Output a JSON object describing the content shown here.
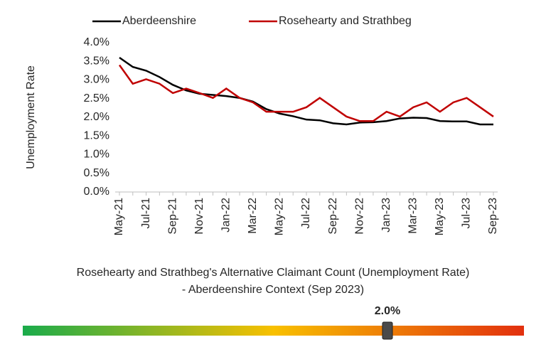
{
  "chart_data": {
    "type": "line",
    "y_label": "Unemployment Rate",
    "categories": [
      "May-21",
      null,
      "Jul-21",
      null,
      "Sep-21",
      null,
      "Nov-21",
      null,
      "Jan-22",
      null,
      "Mar-22",
      null,
      "May-22",
      null,
      "Jul-22",
      null,
      "Sep-22",
      null,
      "Nov-22",
      null,
      "Jan-23",
      null,
      "Mar-23",
      null,
      "May-23",
      null,
      "Jul-23",
      null,
      "Sep-23"
    ],
    "series": [
      {
        "name": "Aberdeenshire",
        "color": "#000000",
        "values": [
          3.6,
          3.35,
          3.25,
          3.08,
          2.87,
          2.72,
          2.63,
          2.6,
          2.57,
          2.52,
          2.42,
          2.22,
          2.1,
          2.03,
          1.94,
          1.92,
          1.84,
          1.81,
          1.86,
          1.87,
          1.9,
          1.97,
          1.99,
          1.98,
          1.9,
          1.89,
          1.89,
          1.81,
          1.81
        ]
      },
      {
        "name": "Rosehearty and Strathbeg",
        "color": "#c00000",
        "values": [
          3.4,
          2.9,
          3.02,
          2.9,
          2.65,
          2.77,
          2.65,
          2.52,
          2.77,
          2.52,
          2.4,
          2.15,
          2.15,
          2.15,
          2.27,
          2.52,
          2.27,
          2.02,
          1.9,
          1.9,
          2.15,
          2.02,
          2.27,
          2.4,
          2.15,
          2.4,
          2.52,
          2.27,
          2.02
        ]
      }
    ],
    "ylim": [
      0,
      4
    ],
    "yticks": [
      {
        "value": 0,
        "label": "0.0%"
      },
      {
        "value": 0.5,
        "label": "0.5%"
      },
      {
        "value": 1,
        "label": "1.0%"
      },
      {
        "value": 1.5,
        "label": "1.5%"
      },
      {
        "value": 2,
        "label": "2.0%"
      },
      {
        "value": 2.5,
        "label": "2.5%"
      },
      {
        "value": 3,
        "label": "3.0%"
      },
      {
        "value": 3.5,
        "label": "3.5%"
      },
      {
        "value": 4,
        "label": "4.0%"
      }
    ],
    "legend": "top"
  },
  "context": {
    "caption": [
      "Rosehearty and Strathbeg's Alternative Claimant Count (Unemployment Rate)",
      "- Aberdeenshire Context (Sep 2023)"
    ],
    "indicator": {
      "value": 2.0,
      "label": "2.0%"
    }
  }
}
